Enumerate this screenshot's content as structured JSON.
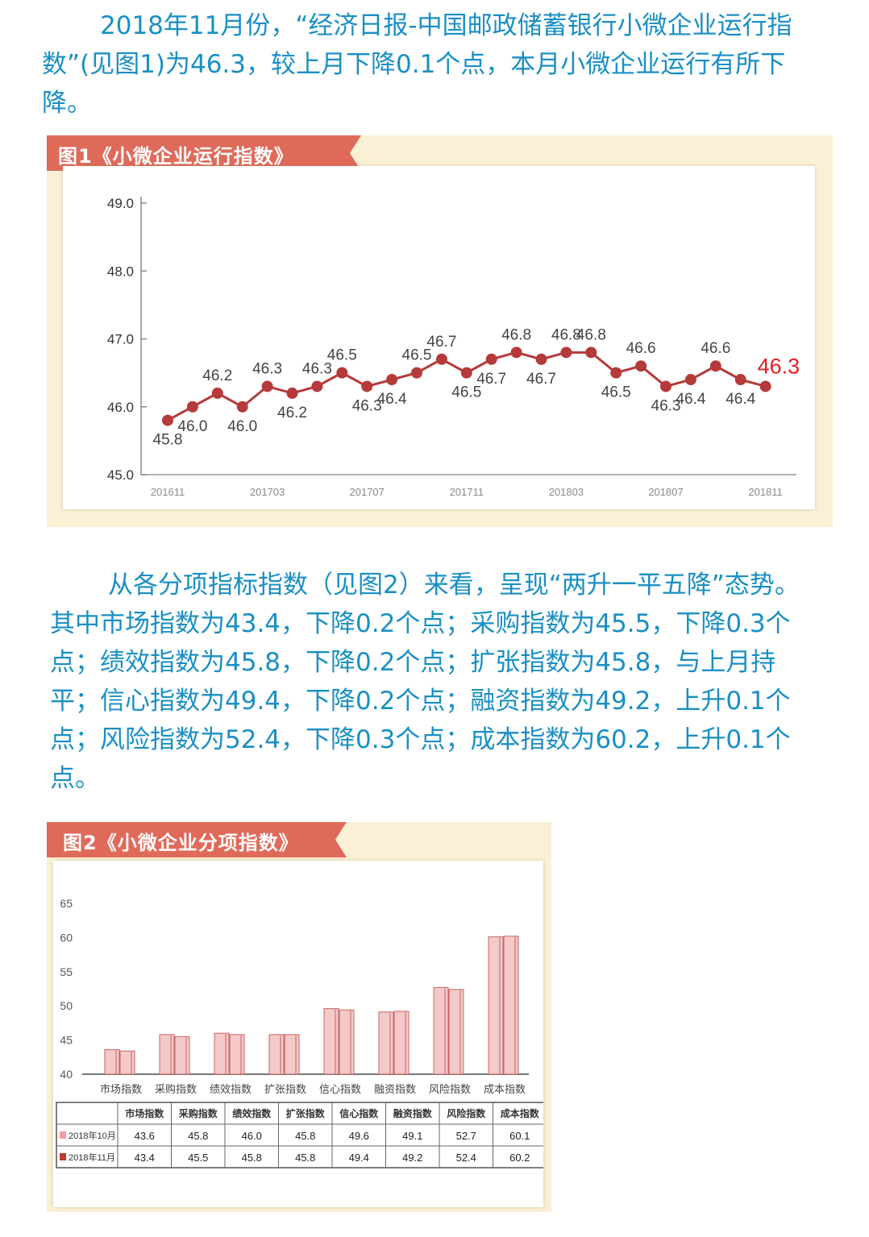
{
  "paragraph1": "2018年11月份，“经济日报-中国邮政储蓄银行小微企业运行指数”(见图1)为46.3，较上月下降0.1个点，本月小微企业运行有所下降。",
  "paragraph2": "从各分项指标指数（见图2）来看，呈现“两升一平五降”态势。其中市场指数为43.4，下降0.2个点；采购指数为45.5，下降0.3个点；绩效指数为45.8，下降0.2个点；扩张指数为45.8，与上月持平；信心指数为49.4，下降0.2个点；融资指数为49.2，上升0.1个点；风险指数为52.4，下降0.3个点；成本指数为60.2，上升0.1个点。",
  "colors": {
    "text_blue": "#1a8fc4",
    "banner_red": "#e06a5a",
    "line_red": "#b53a3a",
    "last_label_red": "#e02020",
    "bar_pink": "#f4c9c9",
    "bar_edge": "#c86464"
  },
  "chart_data": [
    {
      "type": "line",
      "title": "图1《小微企业运行指数》",
      "x": [
        "201611",
        "201612",
        "201701",
        "201702",
        "201703",
        "201704",
        "201705",
        "201706",
        "201707",
        "201708",
        "201709",
        "201710",
        "201711",
        "201712",
        "201801",
        "201802",
        "201803",
        "201804",
        "201805",
        "201806",
        "201807",
        "201808",
        "201809",
        "201810",
        "201811"
      ],
      "x_tick_labels": [
        "201611",
        "201703",
        "201707",
        "201711",
        "201803",
        "201807",
        "201811"
      ],
      "values": [
        45.8,
        46.0,
        46.2,
        46.0,
        46.3,
        46.2,
        46.3,
        46.5,
        46.3,
        46.4,
        46.5,
        46.7,
        46.5,
        46.7,
        46.8,
        46.7,
        46.8,
        46.8,
        46.5,
        46.6,
        46.3,
        46.4,
        46.6,
        46.4,
        46.3
      ],
      "y_tick_labels": [
        "45.0",
        "46.0",
        "47.0",
        "48.0",
        "49.0"
      ],
      "ylim": [
        45.0,
        49.0
      ],
      "highlight_last": true
    },
    {
      "type": "bar",
      "title": "图2《小微企业分项指数》",
      "categories": [
        "市场指数",
        "采购指数",
        "绩效指数",
        "扩张指数",
        "信心指数",
        "融资指数",
        "风险指数",
        "成本指数"
      ],
      "series": [
        {
          "name": "2018年10月",
          "values": [
            "43.6",
            "45.8",
            "46.0",
            "45.8",
            "49.6",
            "49.1",
            "52.7",
            "60.1"
          ]
        },
        {
          "name": "2018年11月",
          "values": [
            "43.4",
            "45.5",
            "45.8",
            "45.8",
            "49.4",
            "49.2",
            "52.4",
            "60.2"
          ]
        }
      ],
      "y_tick_labels": [
        "40",
        "45",
        "50",
        "55",
        "60",
        "65"
      ],
      "ylim": [
        40,
        65
      ]
    }
  ]
}
